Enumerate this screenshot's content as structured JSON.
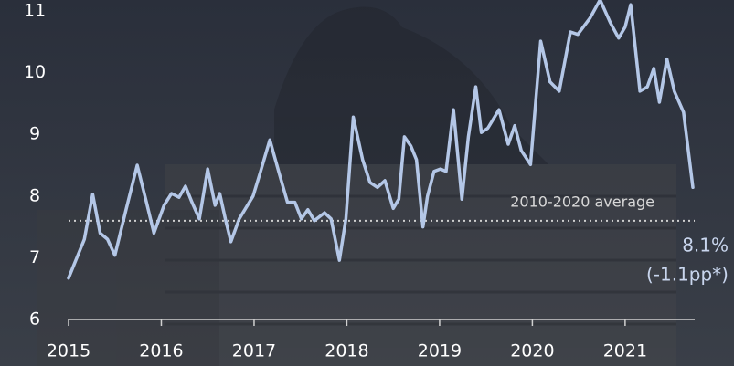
{
  "chart_data": {
    "type": "line",
    "x": [
      2015.0,
      2015.17,
      2015.26,
      2015.34,
      2015.42,
      2015.5,
      2015.62,
      2015.74,
      2015.84,
      2015.92,
      2016.03,
      2016.11,
      2016.19,
      2016.26,
      2016.33,
      2016.41,
      2016.5,
      2016.58,
      2016.63,
      2016.69,
      2016.75,
      2016.84,
      2016.99,
      2017.07,
      2017.17,
      2017.27,
      2017.36,
      2017.44,
      2017.51,
      2017.58,
      2017.65,
      2017.76,
      2017.83,
      2017.92,
      2017.99,
      2018.07,
      2018.17,
      2018.25,
      2018.33,
      2018.41,
      2018.5,
      2018.56,
      2018.62,
      2018.69,
      2018.75,
      2018.82,
      2018.87,
      2018.94,
      2019.01,
      2019.07,
      2019.15,
      2019.24,
      2019.31,
      2019.39,
      2019.45,
      2019.52,
      2019.64,
      2019.74,
      2019.81,
      2019.88,
      2019.98,
      2020.09,
      2020.19,
      2020.29,
      2020.41,
      2020.49,
      2020.62,
      2020.73,
      2020.84,
      2020.93,
      2021.0,
      2021.06,
      2021.16,
      2021.24,
      2021.31,
      2021.37,
      2021.45,
      2021.53,
      2021.63,
      2021.73
    ],
    "values": [
      6.67,
      7.3,
      8.03,
      7.4,
      7.3,
      7.04,
      7.78,
      8.5,
      7.9,
      7.4,
      7.85,
      8.04,
      7.98,
      8.16,
      7.9,
      7.63,
      8.44,
      7.85,
      8.04,
      7.63,
      7.26,
      7.63,
      8.0,
      8.4,
      8.91,
      8.37,
      7.9,
      7.9,
      7.63,
      7.78,
      7.6,
      7.73,
      7.63,
      6.96,
      7.63,
      9.28,
      8.59,
      8.22,
      8.14,
      8.25,
      7.8,
      7.95,
      8.96,
      8.81,
      8.59,
      7.5,
      8.0,
      8.4,
      8.44,
      8.4,
      9.4,
      7.95,
      8.96,
      9.77,
      9.03,
      9.1,
      9.4,
      8.84,
      9.14,
      8.74,
      8.51,
      10.51,
      9.85,
      9.7,
      10.66,
      10.62,
      10.88,
      11.18,
      10.81,
      10.56,
      10.74,
      11.1,
      9.7,
      9.77,
      10.07,
      9.52,
      10.22,
      9.7,
      9.36,
      8.14
    ],
    "color": "#b4c7e7",
    "xlim": [
      2015,
      2021.75
    ],
    "xticks": [
      2015,
      2016,
      2017,
      2018,
      2019,
      2020,
      2021
    ],
    "ylim": [
      6,
      11
    ],
    "yticks": [
      6,
      7,
      8,
      9,
      10,
      11
    ],
    "reference_line": {
      "value": 7.6,
      "label": "2010-2020 average"
    },
    "annotations": [
      "8.1%",
      "(-1.1pp*)"
    ]
  }
}
